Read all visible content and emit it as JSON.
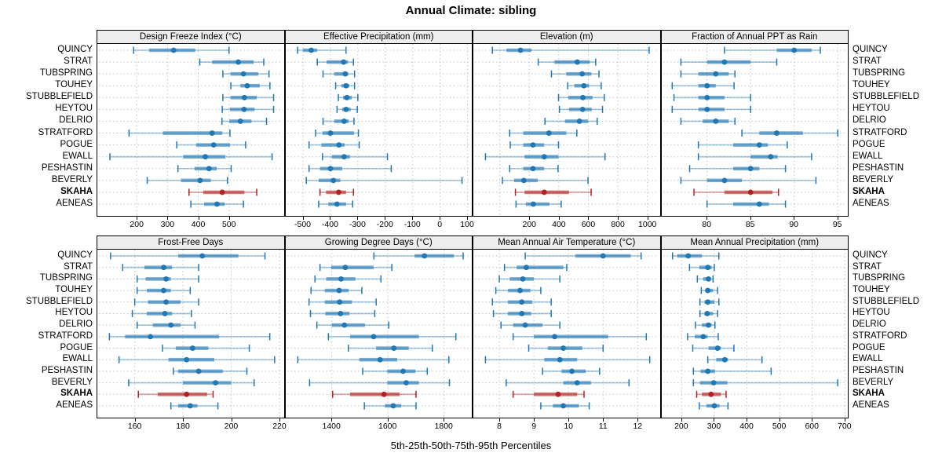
{
  "title": "Annual Climate: sibling",
  "caption": "5th-25th-50th-75th-95th Percentiles",
  "sites": [
    "QUINCY",
    "STRAT",
    "TUBSPRING",
    "TOUHEY",
    "STUBBLEFIELD",
    "HEYTOU",
    "DELRIO",
    "STRATFORD",
    "POGUE",
    "EWALL",
    "PESHASTIN",
    "BEVERLY",
    "SKAHA",
    "AENEAS"
  ],
  "highlight_site": "SKAHA",
  "colors": {
    "series": "#1f77b4",
    "highlight": "#b22222",
    "grid": "#c6c6c6",
    "strip_bg": "#ededed",
    "panel_border": "#000000"
  },
  "chart_data": {
    "type": "dotplot-percentile-intervals",
    "percentiles": [
      5,
      25,
      50,
      75,
      95
    ],
    "legend_note": "each row: 5-95 thin line with end caps, 25-75 thick band, dot = median",
    "panels": [
      {
        "title": "Design Freeze Index (°C)",
        "xlim": [
          72,
          678
        ],
        "ticks": [
          200,
          300,
          400,
          500
        ],
        "rows": [
          [
            190,
            240,
            320,
            390,
            500
          ],
          [
            405,
            445,
            530,
            580,
            613
          ],
          [
            480,
            505,
            547,
            595,
            630
          ],
          [
            506,
            537,
            559,
            600,
            633
          ],
          [
            480,
            505,
            550,
            590,
            645
          ],
          [
            478,
            503,
            549,
            583,
            645
          ],
          [
            477,
            501,
            537,
            573,
            622
          ],
          [
            175,
            285,
            445,
            478,
            503
          ],
          [
            330,
            393,
            450,
            503,
            554
          ],
          [
            113,
            351,
            423,
            488,
            640
          ],
          [
            334,
            388,
            435,
            460,
            507
          ],
          [
            234,
            344,
            406,
            441,
            495
          ],
          [
            370,
            416,
            478,
            550,
            590
          ],
          [
            376,
            419,
            461,
            486,
            547
          ]
        ]
      },
      {
        "title": "Effective Precipitation (mm)",
        "xlim": [
          -563,
          117
        ],
        "ticks": [
          -500,
          -400,
          -300,
          -200,
          -100,
          0,
          100
        ],
        "rows": [
          [
            -520,
            -500,
            -470,
            -448,
            -343
          ],
          [
            -448,
            -414,
            -352,
            -336,
            -316
          ],
          [
            -427,
            -386,
            -346,
            -335,
            -312
          ],
          [
            -381,
            -360,
            -343,
            -331,
            -312
          ],
          [
            -371,
            -354,
            -340,
            -322,
            -300
          ],
          [
            -376,
            -357,
            -343,
            -326,
            -302
          ],
          [
            -427,
            -386,
            -350,
            -333,
            -314
          ],
          [
            -454,
            -429,
            -400,
            -314,
            -298
          ],
          [
            -478,
            -433,
            -369,
            -348,
            -295
          ],
          [
            -429,
            -395,
            -350,
            -329,
            -192
          ],
          [
            -478,
            -438,
            -400,
            -357,
            -178
          ],
          [
            -488,
            -443,
            -389,
            -364,
            80
          ],
          [
            -438,
            -416,
            -370,
            -343,
            -316
          ],
          [
            -443,
            -408,
            -376,
            -343,
            -319
          ]
        ]
      },
      {
        "title": "Elevation (m)",
        "xlim": [
          -179,
          1084
        ],
        "ticks": [
          200,
          400,
          600,
          800,
          1000
        ],
        "grid_extra": [
          0
        ],
        "rows": [
          [
            -50,
            45,
            140,
            215,
            1012
          ],
          [
            260,
            370,
            525,
            610,
            650
          ],
          [
            350,
            450,
            558,
            620,
            672
          ],
          [
            460,
            505,
            570,
            605,
            687
          ],
          [
            398,
            464,
            563,
            628,
            708
          ],
          [
            404,
            469,
            561,
            623,
            696
          ],
          [
            306,
            442,
            540,
            598,
            660
          ],
          [
            67,
            159,
            333,
            451,
            522
          ],
          [
            71,
            159,
            225,
            301,
            398
          ],
          [
            -97,
            168,
            301,
            398,
            713
          ],
          [
            67,
            159,
            225,
            301,
            395
          ],
          [
            18,
            97,
            163,
            257,
            598
          ],
          [
            106,
            168,
            301,
            469,
            619
          ],
          [
            110,
            177,
            227,
            336,
            416
          ]
        ]
      },
      {
        "title": "Fraction of Annual PPT as Rain",
        "xlim": [
          74.8,
          96.2
        ],
        "ticks": [
          80,
          85,
          90,
          95
        ],
        "rows": [
          [
            82,
            88,
            90,
            92,
            93
          ],
          [
            77,
            80,
            82,
            85,
            88
          ],
          [
            77,
            79,
            81,
            82.5,
            83.2
          ],
          [
            76,
            79,
            80,
            81,
            83.1
          ],
          [
            76.2,
            79,
            80,
            82,
            85
          ],
          [
            76,
            79,
            80,
            82,
            85
          ],
          [
            77,
            79.5,
            81,
            82.5,
            83.2
          ],
          [
            84,
            86,
            88,
            91,
            95
          ],
          [
            79,
            83,
            86,
            87,
            89.2
          ],
          [
            79,
            85,
            87.3,
            88.1,
            92
          ],
          [
            78,
            83,
            85,
            86,
            89
          ],
          [
            77,
            80,
            82,
            84,
            92.5
          ],
          [
            78.5,
            82,
            85,
            87.5,
            88.2
          ],
          [
            80,
            83,
            86,
            87.1,
            89
          ]
        ]
      },
      {
        "title": "Frost-Free Days",
        "xlim": [
          144.5,
          221.8
        ],
        "ticks": [
          160,
          180,
          200,
          220
        ],
        "rows": [
          [
            150,
            178,
            188,
            203,
            214
          ],
          [
            155,
            164,
            172,
            175.5,
            186.5
          ],
          [
            161,
            164.5,
            173,
            175,
            186.5
          ],
          [
            161,
            165,
            172,
            175,
            183
          ],
          [
            160,
            165.5,
            173,
            179,
            186.5
          ],
          [
            159,
            165,
            172.5,
            175.5,
            183.5
          ],
          [
            161,
            167.5,
            175,
            179,
            185
          ],
          [
            149.5,
            156,
            166.5,
            195,
            216
          ],
          [
            171.5,
            177,
            184,
            190.5,
            207.5
          ],
          [
            153.5,
            174,
            181.5,
            193,
            218
          ],
          [
            176,
            178,
            186.5,
            196.5,
            206.5
          ],
          [
            157.5,
            180,
            193.5,
            200,
            209.5
          ],
          [
            161.5,
            169.5,
            181.5,
            190,
            192.5
          ],
          [
            175,
            178,
            183,
            186,
            194.5
          ]
        ]
      },
      {
        "title": "Growing Degree Days (°C)",
        "xlim": [
          1236,
          1900
        ],
        "ticks": [
          1400,
          1600,
          1800
        ],
        "rows": [
          [
            1550,
            1695,
            1730,
            1835,
            1868
          ],
          [
            1358,
            1398,
            1448,
            1549,
            1614
          ],
          [
            1340,
            1380,
            1433,
            1484,
            1575
          ],
          [
            1326,
            1375,
            1426,
            1460,
            1507
          ],
          [
            1319,
            1375,
            1428,
            1472,
            1558
          ],
          [
            1324,
            1377,
            1431,
            1463,
            1553
          ],
          [
            1347,
            1400,
            1445,
            1518,
            1603
          ],
          [
            1388,
            1465,
            1549,
            1710,
            1842
          ],
          [
            1459,
            1558,
            1621,
            1674,
            1758
          ],
          [
            1279,
            1498,
            1572,
            1633,
            1817
          ],
          [
            1510,
            1598,
            1654,
            1698,
            1740
          ],
          [
            1321,
            1598,
            1665,
            1710,
            1819
          ],
          [
            1403,
            1465,
            1586,
            1642,
            1700
          ],
          [
            1516,
            1589,
            1619,
            1647,
            1700
          ]
        ]
      },
      {
        "title": "Mean Annual Air Temperature (°C)",
        "xlim": [
          7.25,
          12.64
        ],
        "ticks": [
          8,
          9,
          10,
          11,
          12
        ],
        "rows": [
          [
            8.75,
            10.2,
            11.0,
            11.8,
            12.1
          ],
          [
            8.15,
            8.5,
            8.78,
            9.85,
            9.95
          ],
          [
            8.0,
            8.3,
            8.68,
            9.0,
            9.75
          ],
          [
            7.9,
            8.25,
            8.6,
            8.9,
            9.2
          ],
          [
            7.8,
            8.25,
            8.65,
            8.95,
            9.5
          ],
          [
            7.83,
            8.25,
            8.65,
            8.92,
            9.5
          ],
          [
            8.05,
            8.4,
            8.75,
            9.25,
            9.75
          ],
          [
            8.4,
            9.0,
            9.6,
            11.15,
            12.25
          ],
          [
            8.85,
            9.4,
            9.85,
            10.4,
            11.0
          ],
          [
            7.6,
            9.3,
            9.75,
            10.25,
            12.35
          ],
          [
            9.25,
            9.8,
            10.1,
            10.5,
            10.9
          ],
          [
            8.2,
            9.85,
            10.25,
            10.65,
            11.75
          ],
          [
            8.4,
            9.0,
            9.7,
            10.25,
            10.45
          ],
          [
            9.2,
            9.55,
            9.85,
            10.3,
            10.6
          ]
        ]
      },
      {
        "title": "Mean Annual Precipitation (mm)",
        "xlim": [
          139,
          710
        ],
        "ticks": [
          200,
          300,
          400,
          500,
          600,
          700
        ],
        "rows": [
          [
            172,
            186,
            220,
            262,
            314
          ],
          [
            224,
            254,
            280,
            292,
            300
          ],
          [
            248,
            266,
            282,
            290,
            296
          ],
          [
            260,
            272,
            280,
            296,
            310
          ],
          [
            256,
            270,
            280,
            300,
            314
          ],
          [
            256,
            270,
            278,
            296,
            310
          ],
          [
            242,
            262,
            282,
            292,
            302
          ],
          [
            218,
            240,
            266,
            280,
            312
          ],
          [
            234,
            282,
            310,
            320,
            360
          ],
          [
            280,
            306,
            332,
            342,
            446
          ],
          [
            236,
            258,
            280,
            302,
            474
          ],
          [
            236,
            256,
            298,
            340,
            678
          ],
          [
            246,
            262,
            290,
            320,
            336
          ],
          [
            254,
            276,
            300,
            316,
            342
          ]
        ]
      }
    ]
  }
}
